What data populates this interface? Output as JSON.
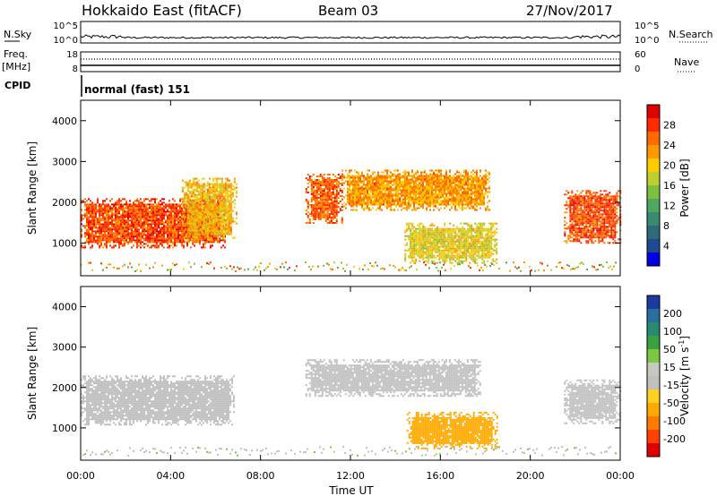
{
  "header": {
    "station": "Hokkaido East (fitACF)",
    "beam": "Beam 03",
    "date": "27/Nov/2017"
  },
  "panels": {
    "nsky": {
      "label": "N.Sky",
      "ticks": [
        "10^5",
        "10^0"
      ],
      "right_ticks": [
        "10^5",
        "10^0"
      ],
      "right_label": "N.Search"
    },
    "freq": {
      "label_top": "Freq.",
      "label_bottom": "[MHz]",
      "ticks": [
        "18",
        "8"
      ],
      "right_ticks": [
        "60",
        "0"
      ],
      "right_label": "Nave"
    },
    "cpid": {
      "label": "CPID",
      "text": "normal (fast) 151"
    }
  },
  "colorbars": {
    "power": {
      "label": "Power [dB]",
      "ticks": [
        "28",
        "24",
        "20",
        "16",
        "12",
        "8",
        "4"
      ],
      "colors": [
        "#e00000",
        "#ff2a00",
        "#ff6a00",
        "#ff9900",
        "#ffcc00",
        "#bfcf30",
        "#7cc040",
        "#4fa860",
        "#3a8a70",
        "#2f6a78",
        "#1f4a90",
        "#0000e0"
      ]
    },
    "velocity": {
      "label_main": "Velocity [m s",
      "label_sup": "-1",
      "label_end": "]",
      "ticks": [
        "200",
        "100",
        "50",
        "15",
        "-15",
        "-50",
        "-100",
        "-200"
      ],
      "colors": [
        "#1a3aa0",
        "#2a6fa0",
        "#2a8a70",
        "#3aa040",
        "#7cc840",
        "#c8c8c0",
        "#c0c0c0",
        "#ffd020",
        "#ffaa00",
        "#ff7a00",
        "#ff4000",
        "#e00000"
      ]
    }
  },
  "axes": {
    "ylabel": "Slant Range [km]",
    "yticks": [
      "4000",
      "3000",
      "2000",
      "1000"
    ],
    "xticks": [
      "00:00",
      "04:00",
      "08:00",
      "12:00",
      "16:00",
      "20:00",
      "00:00"
    ],
    "xlabel": "Time UT"
  },
  "chart_data": [
    {
      "type": "heatmap",
      "name": "power",
      "x_range_hours": [
        0,
        24
      ],
      "y_range_km": [
        200,
        4500
      ],
      "blobs": [
        {
          "t0": 0.0,
          "t1": 6.4,
          "r0": 900,
          "r1": 2100,
          "dB": 26
        },
        {
          "t0": 4.5,
          "t1": 6.9,
          "r0": 1100,
          "r1": 2600,
          "dB": 20
        },
        {
          "t0": 10.0,
          "t1": 11.6,
          "r0": 1500,
          "r1": 2700,
          "dB": 25
        },
        {
          "t0": 11.6,
          "t1": 18.2,
          "r0": 1800,
          "r1": 2800,
          "dB": 22
        },
        {
          "t0": 14.4,
          "t1": 18.5,
          "r0": 500,
          "r1": 1500,
          "dB": 18
        },
        {
          "t0": 21.5,
          "t1": 24.0,
          "r0": 1000,
          "r1": 2300,
          "dB": 26
        }
      ]
    },
    {
      "type": "heatmap",
      "name": "velocity",
      "x_range_hours": [
        0,
        24
      ],
      "y_range_km": [
        200,
        4500
      ],
      "blobs": [
        {
          "t0": 0.0,
          "t1": 6.8,
          "r0": 1100,
          "r1": 2300,
          "v": 0
        },
        {
          "t0": 10.0,
          "t1": 17.8,
          "r0": 1800,
          "r1": 2700,
          "v": 0
        },
        {
          "t0": 14.5,
          "t1": 18.5,
          "r0": 500,
          "r1": 1400,
          "v": -70
        },
        {
          "t0": 21.5,
          "t1": 24.0,
          "r0": 1100,
          "r1": 2200,
          "v": 0
        }
      ]
    }
  ]
}
